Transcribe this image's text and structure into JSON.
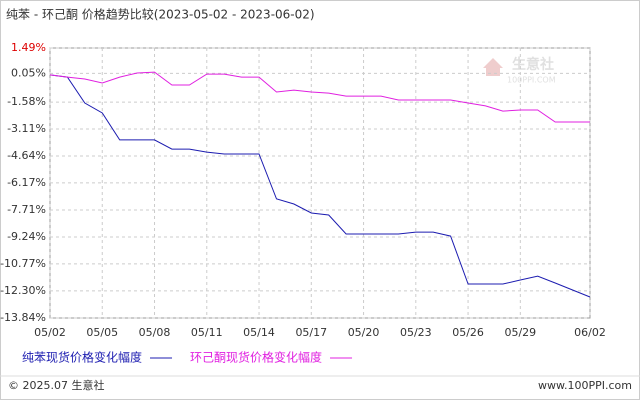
{
  "chart_data": {
    "type": "line",
    "title": "纯苯 - 环己酮 价格趋势比较(2023-05-02 - 2023-06-02)",
    "categories": [
      "05/02",
      null,
      null,
      "05/05",
      null,
      null,
      "05/08",
      null,
      null,
      "05/11",
      null,
      null,
      "05/14",
      null,
      null,
      "05/17",
      null,
      null,
      "05/20",
      null,
      null,
      "05/23",
      null,
      null,
      "05/26",
      null,
      null,
      "05/29",
      null,
      null,
      null,
      "06/02"
    ],
    "series": [
      {
        "name": "纯苯现货价格变化幅度",
        "color": "#1c1cb0",
        "values": [
          -0.04,
          -0.16,
          -1.63,
          -2.2,
          -3.73,
          -3.73,
          -3.73,
          -4.25,
          -4.25,
          -4.42,
          -4.53,
          -4.53,
          -4.53,
          -7.08,
          -7.37,
          -7.88,
          -7.99,
          -9.07,
          -9.07,
          -9.07,
          -9.07,
          -8.96,
          -8.96,
          -9.19,
          -11.91,
          -11.91,
          -11.91,
          -11.68,
          -11.46,
          -11.85,
          -12.25,
          -12.65
        ]
      },
      {
        "name": "环己酮现货价格变化幅度",
        "color": "#e020e0",
        "values": [
          -0.04,
          -0.16,
          -0.27,
          -0.5,
          -0.16,
          0.07,
          0.12,
          -0.61,
          -0.61,
          0.01,
          0.01,
          -0.16,
          -0.16,
          -1.01,
          -0.9,
          -1.01,
          -1.07,
          -1.24,
          -1.24,
          -1.24,
          -1.46,
          -1.46,
          -1.46,
          -1.46,
          -1.63,
          -1.8,
          -2.09,
          -2.03,
          -2.03,
          -2.71,
          -2.71,
          -2.71
        ]
      }
    ],
    "ylim": [
      -13.84,
      1.49
    ],
    "yticks": [
      {
        "value": 1.49,
        "label": "1.49%"
      },
      {
        "value": 0.05,
        "label": "0.05%"
      },
      {
        "value": -1.58,
        "label": "-1.58%"
      },
      {
        "value": -3.11,
        "label": "-3.11%"
      },
      {
        "value": -4.64,
        "label": "-4.64%"
      },
      {
        "value": -6.17,
        "label": "-6.17%"
      },
      {
        "value": -7.71,
        "label": "-7.71%"
      },
      {
        "value": -9.24,
        "label": "-9.24%"
      },
      {
        "value": -10.77,
        "label": "-10.77%"
      },
      {
        "value": -12.3,
        "label": "-12.30%"
      },
      {
        "value": -13.84,
        "label": "-13.84%"
      }
    ],
    "grid": true,
    "legend": "bottom"
  },
  "watermark": {
    "name": "生意社",
    "url": "100PPI.COM"
  },
  "footer": {
    "copyright": "© 2025.07 生意社",
    "site": "www.100PPI.com"
  }
}
